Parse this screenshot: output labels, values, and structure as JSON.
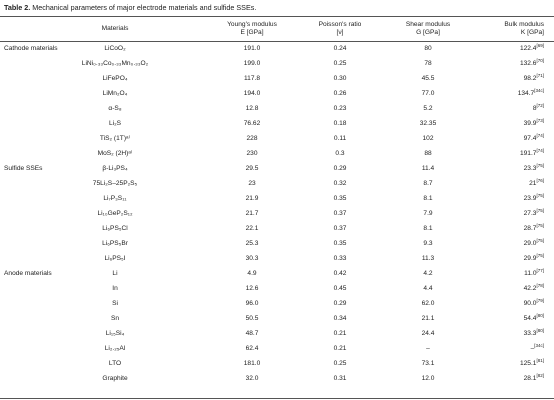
{
  "caption": {
    "label": "Table 2.",
    "text": "Mechanical parameters of major electrode materials and sulfide SSEs."
  },
  "header": {
    "materials": "Materials",
    "young": [
      "Young's modulus",
      "E [GPa]"
    ],
    "poisson": [
      "Poisson's ratio",
      "[ν]"
    ],
    "shear": [
      "Shear modulus",
      "G [GPa]"
    ],
    "bulk": [
      "Bulk modulus",
      "K [GPa]"
    ]
  },
  "groups": [
    {
      "label": "Cathode materials",
      "rows": [
        {
          "material": "LiCoO₂",
          "E": "191.0",
          "nu": "0.24",
          "G": "80",
          "K": "122.4",
          "ref": "[69]"
        },
        {
          "material": "LiNi₀.₃₃Co₀.₃₃Mn₀.₃₃O₂",
          "E": "199.0",
          "nu": "0.25",
          "G": "78",
          "K": "132.6",
          "ref": "[70]"
        },
        {
          "material": "LiFePO₄",
          "E": "117.8",
          "nu": "0.30",
          "G": "45.5",
          "K": "98.2",
          "ref": "[71]"
        },
        {
          "material": "LiMn₂O₄",
          "E": "194.0",
          "nu": "0.26",
          "G": "77.0",
          "K": "134.7",
          "ref": "[34c]"
        },
        {
          "material": "α-S₈",
          "E": "12.8",
          "nu": "0.23",
          "G": "5.2",
          "K": "8",
          "ref": "[72]"
        },
        {
          "material": "Li₂S",
          "E": "76.62",
          "nu": "0.18",
          "G": "32.35",
          "K": "39.9",
          "ref": "[73]"
        },
        {
          "material": "TiS₂ (1T)ᵃ⁾",
          "E": "228",
          "nu": "0.11",
          "G": "102",
          "K": "97.4",
          "ref": "[74]"
        },
        {
          "material": "MoS₂ (2H)ᵃ⁾",
          "E": "230",
          "nu": "0.3",
          "G": "88",
          "K": "191.7",
          "ref": "[74]"
        }
      ]
    },
    {
      "label": "Sulfide SSEs",
      "rows": [
        {
          "material": "β-Li₃PS₄",
          "E": "29.5",
          "nu": "0.29",
          "G": "11.4",
          "K": "23.3",
          "ref": "[75]"
        },
        {
          "material": "75Li₂S–25P₂S₅",
          "E": "23",
          "nu": "0.32",
          "G": "8.7",
          "K": "21",
          "ref": "[76]"
        },
        {
          "material": "Li₇P₃S₁₁",
          "E": "21.9",
          "nu": "0.35",
          "G": "8.1",
          "K": "23.9",
          "ref": "[75]"
        },
        {
          "material": "Li₁₀GeP₂S₁₂",
          "E": "21.7",
          "nu": "0.37",
          "G": "7.9",
          "K": "27.3",
          "ref": "[75]"
        },
        {
          "material": "Li₆PS₅Cl",
          "E": "22.1",
          "nu": "0.37",
          "G": "8.1",
          "K": "28.7",
          "ref": "[75]"
        },
        {
          "material": "Li₆PS₅Br",
          "E": "25.3",
          "nu": "0.35",
          "G": "9.3",
          "K": "29.0",
          "ref": "[75]"
        },
        {
          "material": "Li₆PS₅I",
          "E": "30.3",
          "nu": "0.33",
          "G": "11.3",
          "K": "29.9",
          "ref": "[75]"
        }
      ]
    },
    {
      "label": "Anode materials",
      "rows": [
        {
          "material": "Li",
          "E": "4.9",
          "nu": "0.42",
          "G": "4.2",
          "K": "11.0",
          "ref": "[77]"
        },
        {
          "material": "In",
          "E": "12.6",
          "nu": "0.45",
          "G": "4.4",
          "K": "42.2",
          "ref": "[78]"
        },
        {
          "material": "Si",
          "E": "96.0",
          "nu": "0.29",
          "G": "62.0",
          "K": "90.0",
          "ref": "[79]"
        },
        {
          "material": "Sn",
          "E": "50.5",
          "nu": "0.34",
          "G": "21.1",
          "K": "54.4",
          "ref": "[80]"
        },
        {
          "material": "Li₁₅Si₄",
          "E": "48.7",
          "nu": "0.21",
          "G": "24.4",
          "K": "33.3",
          "ref": "[80]"
        },
        {
          "material": "Li₂.₂₅Al",
          "E": "62.4",
          "nu": "0.21",
          "G": "–",
          "K": "–",
          "ref": "[34c]"
        },
        {
          "material": "LTO",
          "E": "181.0",
          "nu": "0.25",
          "G": "73.1",
          "K": "125.1",
          "ref": "[81]"
        },
        {
          "material": "Graphite",
          "E": "32.0",
          "nu": "0.31",
          "G": "12.0",
          "K": "28.1",
          "ref": "[82]"
        }
      ]
    }
  ]
}
